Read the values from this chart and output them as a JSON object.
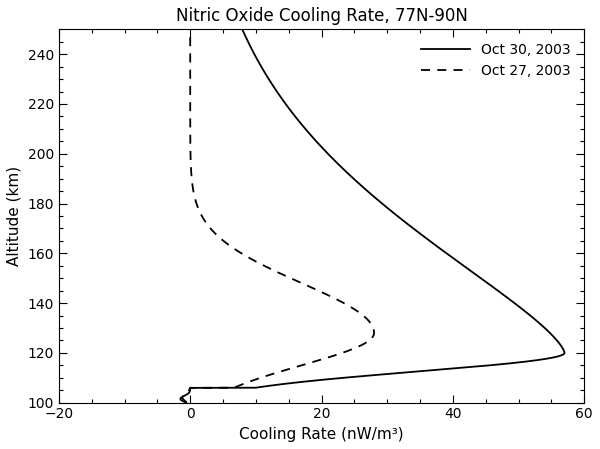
{
  "title": "Nitric Oxide Cooling Rate, 77N-90N",
  "xlabel": "Cooling Rate (nW/m³)",
  "ylabel": "Altitude (km)",
  "xlim": [
    -20,
    60
  ],
  "ylim": [
    100,
    250
  ],
  "xticks": [
    -20,
    0,
    20,
    40,
    60
  ],
  "yticks": [
    100,
    120,
    140,
    160,
    180,
    200,
    220,
    240
  ],
  "legend_entries": [
    "Oct 30, 2003",
    "Oct 27, 2003"
  ],
  "line_color": "#000000",
  "background_color": "#ffffff",
  "title_fontsize": 12,
  "label_fontsize": 11,
  "tick_fontsize": 10
}
